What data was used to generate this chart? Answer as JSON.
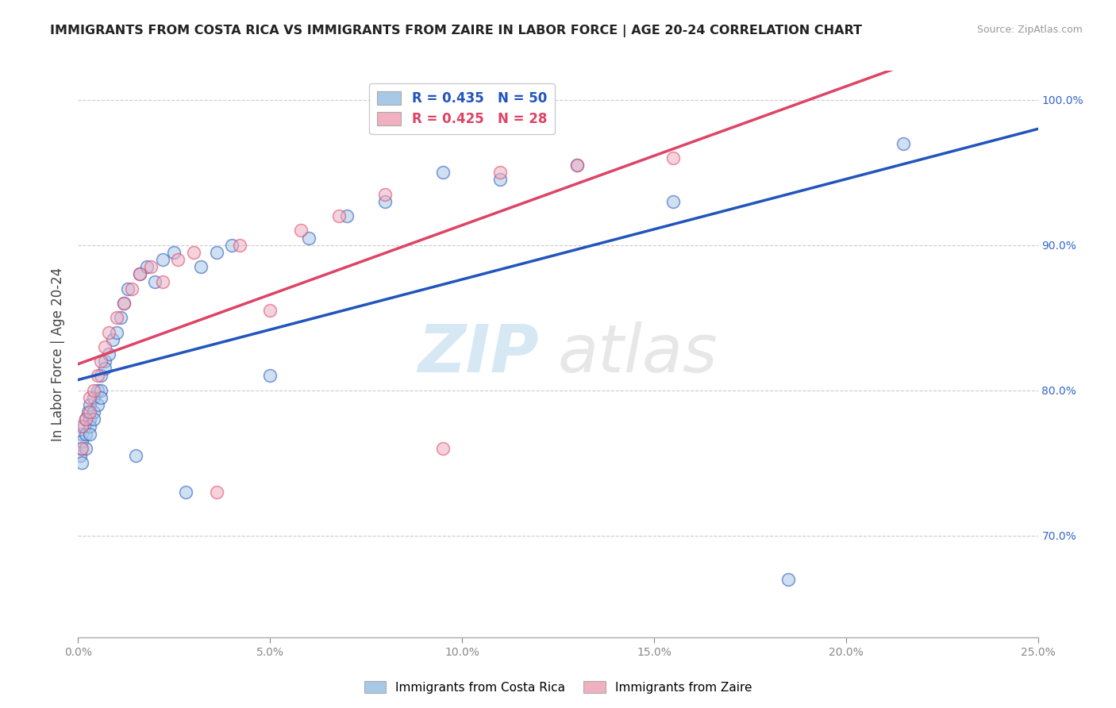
{
  "title": "IMMIGRANTS FROM COSTA RICA VS IMMIGRANTS FROM ZAIRE IN LABOR FORCE | AGE 20-24 CORRELATION CHART",
  "source": "Source: ZipAtlas.com",
  "ylabel_label": "In Labor Force | Age 20-24",
  "legend_blue_text": "R = 0.435   N = 50",
  "legend_pink_text": "R = 0.425   N = 28",
  "legend_blue_label": "Immigrants from Costa Rica",
  "legend_pink_label": "Immigrants from Zaire",
  "watermark_zip": "ZIP",
  "watermark_atlas": "atlas",
  "blue_color": "#a8c8e8",
  "pink_color": "#f0b0c0",
  "blue_line_color": "#2255bb",
  "pink_line_color": "#dd4466",
  "xlim": [
    0.0,
    0.25
  ],
  "ylim": [
    0.63,
    1.02
  ],
  "ytick_step": 0.1,
  "xtick_step": 0.05,
  "grid_color": "#cccccc",
  "background_color": "#ffffff",
  "cr_x": [
    0.0005,
    0.0008,
    0.001,
    0.001,
    0.001,
    0.0015,
    0.002,
    0.002,
    0.002,
    0.0025,
    0.003,
    0.003,
    0.003,
    0.003,
    0.004,
    0.004,
    0.004,
    0.005,
    0.005,
    0.006,
    0.006,
    0.006,
    0.007,
    0.007,
    0.008,
    0.009,
    0.01,
    0.011,
    0.012,
    0.013,
    0.015,
    0.016,
    0.018,
    0.02,
    0.022,
    0.025,
    0.028,
    0.032,
    0.036,
    0.04,
    0.05,
    0.06,
    0.07,
    0.08,
    0.095,
    0.11,
    0.13,
    0.155,
    0.185,
    0.215
  ],
  "cr_y": [
    0.755,
    0.76,
    0.77,
    0.75,
    0.765,
    0.775,
    0.78,
    0.77,
    0.76,
    0.785,
    0.79,
    0.78,
    0.775,
    0.77,
    0.795,
    0.785,
    0.78,
    0.8,
    0.79,
    0.81,
    0.8,
    0.795,
    0.82,
    0.815,
    0.825,
    0.835,
    0.84,
    0.85,
    0.86,
    0.87,
    0.755,
    0.88,
    0.885,
    0.875,
    0.89,
    0.895,
    0.73,
    0.885,
    0.895,
    0.9,
    0.81,
    0.905,
    0.92,
    0.93,
    0.95,
    0.945,
    0.955,
    0.93,
    0.67,
    0.97
  ],
  "zr_x": [
    0.001,
    0.001,
    0.002,
    0.003,
    0.003,
    0.004,
    0.005,
    0.006,
    0.007,
    0.008,
    0.01,
    0.012,
    0.014,
    0.016,
    0.019,
    0.022,
    0.026,
    0.03,
    0.036,
    0.042,
    0.05,
    0.058,
    0.068,
    0.08,
    0.095,
    0.11,
    0.13,
    0.155
  ],
  "zr_y": [
    0.775,
    0.76,
    0.78,
    0.785,
    0.795,
    0.8,
    0.81,
    0.82,
    0.83,
    0.84,
    0.85,
    0.86,
    0.87,
    0.88,
    0.885,
    0.875,
    0.89,
    0.895,
    0.73,
    0.9,
    0.855,
    0.91,
    0.92,
    0.935,
    0.76,
    0.95,
    0.955,
    0.96
  ]
}
